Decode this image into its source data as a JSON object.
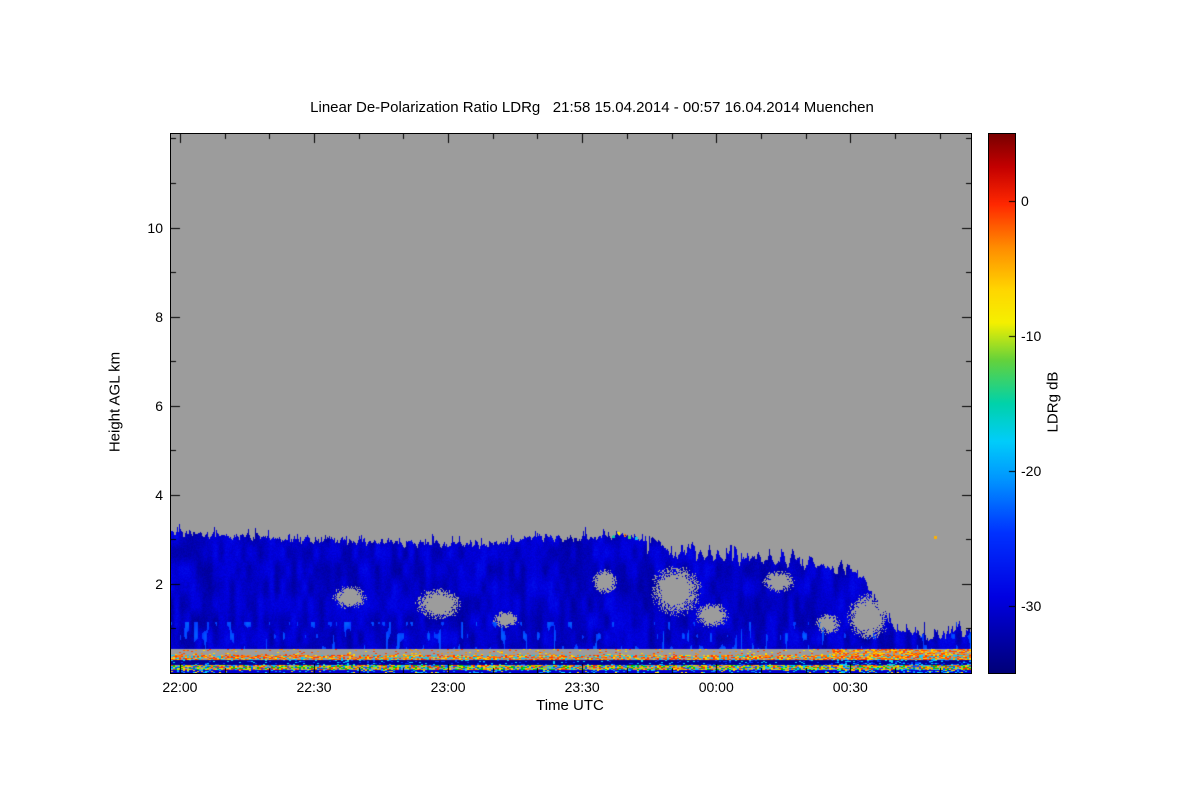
{
  "chart_data": {
    "type": "heatmap",
    "title": "Linear De-Polarization Ratio LDRg   21:58 15.04.2014 - 00:57 16.04.2014 Muenchen",
    "instrument_quantity": "Linear De-Polarization Ratio LDRg",
    "time_start": "21:58 15.04.2014",
    "time_end": "00:57 16.04.2014",
    "station": "Muenchen",
    "xlabel": "Time UTC",
    "ylabel": "Height AGL km",
    "x_range_minutes": [
      0,
      179
    ],
    "x_ticks": [
      {
        "t": 2,
        "label": "22:00"
      },
      {
        "t": 32,
        "label": "22:30"
      },
      {
        "t": 62,
        "label": "23:00"
      },
      {
        "t": 92,
        "label": "23:30"
      },
      {
        "t": 122,
        "label": "00:00"
      },
      {
        "t": 152,
        "label": "00:30"
      }
    ],
    "x_minor_tick_minutes": 10,
    "y_range_km": [
      0,
      12.1
    ],
    "y_ticks": [
      {
        "h": 2,
        "label": "2"
      },
      {
        "h": 4,
        "label": "4"
      },
      {
        "h": 6,
        "label": "6"
      },
      {
        "h": 8,
        "label": "8"
      },
      {
        "h": 10,
        "label": "10"
      }
    ],
    "y_minor_tick_km": 1,
    "nodata_color": "#9c9c9c",
    "colorbar": {
      "label": "LDRg dB",
      "range_db": [
        -35,
        5
      ],
      "ticks": [
        {
          "v": 0,
          "label": "0"
        },
        {
          "v": -10,
          "label": "-10"
        },
        {
          "v": -20,
          "label": "-20"
        },
        {
          "v": -30,
          "label": "-30"
        }
      ],
      "stops": [
        [
          0.0,
          "#7a0000"
        ],
        [
          0.06,
          "#c30000"
        ],
        [
          0.13,
          "#ff2800"
        ],
        [
          0.21,
          "#ff8c00"
        ],
        [
          0.29,
          "#ffd700"
        ],
        [
          0.35,
          "#f5f000"
        ],
        [
          0.42,
          "#64d23c"
        ],
        [
          0.5,
          "#00d2aa"
        ],
        [
          0.57,
          "#00cdfa"
        ],
        [
          0.64,
          "#0096ff"
        ],
        [
          0.74,
          "#0032ff"
        ],
        [
          0.86,
          "#0000e1"
        ],
        [
          1.0,
          "#000078"
        ]
      ]
    },
    "cloud": {
      "description": "Low liquid cloud layer with LDRg near -31 dB (blue) from ~0.55 km up to ~3 km; top slowly lowers, layer breaks up and descends to ~0.9 km after 00:30; gray = no data",
      "typical_ldr_db": -31,
      "base_km": 0.55,
      "top_profile": [
        [
          0,
          3.15
        ],
        [
          5,
          3.13
        ],
        [
          10,
          3.1
        ],
        [
          15,
          3.07
        ],
        [
          20,
          3.04
        ],
        [
          25,
          3.02
        ],
        [
          30,
          3.0
        ],
        [
          35,
          2.98
        ],
        [
          40,
          2.97
        ],
        [
          45,
          2.95
        ],
        [
          50,
          2.94
        ],
        [
          55,
          2.93
        ],
        [
          60,
          2.92
        ],
        [
          65,
          2.9
        ],
        [
          70,
          2.92
        ],
        [
          75,
          2.97
        ],
        [
          80,
          3.02
        ],
        [
          85,
          3.06
        ],
        [
          88,
          3.03
        ],
        [
          92,
          3.05
        ],
        [
          96,
          3.08
        ],
        [
          100,
          3.12
        ],
        [
          103,
          3.08
        ],
        [
          106,
          2.98
        ],
        [
          110,
          2.8
        ],
        [
          114,
          2.72
        ],
        [
          118,
          2.7
        ],
        [
          122,
          2.76
        ],
        [
          126,
          2.66
        ],
        [
          130,
          2.6
        ],
        [
          134,
          2.62
        ],
        [
          138,
          2.54
        ],
        [
          142,
          2.5
        ],
        [
          146,
          2.45
        ],
        [
          150,
          2.4
        ],
        [
          153,
          2.3
        ],
        [
          156,
          1.9
        ],
        [
          159,
          1.4
        ],
        [
          162,
          1.05
        ],
        [
          166,
          0.92
        ],
        [
          170,
          0.85
        ],
        [
          174,
          0.9
        ],
        [
          179,
          0.95
        ]
      ],
      "holes": [
        {
          "t": 40,
          "h": 1.7,
          "rt": 4.0,
          "rh": 0.28
        },
        {
          "t": 60,
          "h": 1.55,
          "rt": 5.5,
          "rh": 0.38
        },
        {
          "t": 75,
          "h": 1.2,
          "rt": 3.0,
          "rh": 0.2
        },
        {
          "t": 97,
          "h": 2.05,
          "rt": 3.0,
          "rh": 0.3
        },
        {
          "t": 113,
          "h": 1.85,
          "rt": 6.0,
          "rh": 0.6
        },
        {
          "t": 121,
          "h": 1.3,
          "rt": 4.0,
          "rh": 0.3
        },
        {
          "t": 136,
          "h": 2.05,
          "rt": 4.0,
          "rh": 0.25
        },
        {
          "t": 147,
          "h": 1.1,
          "rt": 3.0,
          "rh": 0.25
        },
        {
          "t": 156,
          "h": 1.25,
          "rt": 5.0,
          "rh": 0.55
        }
      ],
      "top_specks": [
        {
          "t": 99,
          "h": 3.08,
          "db": -15
        },
        {
          "t": 100,
          "h": 3.14,
          "db": -8
        },
        {
          "t": 101.5,
          "h": 3.1,
          "db": -3
        },
        {
          "t": 102.5,
          "h": 3.05,
          "db": -13
        },
        {
          "t": 104,
          "h": 3.02,
          "db": -18
        },
        {
          "t": 171,
          "h": 3.05,
          "db": -5
        }
      ]
    },
    "surface_bands": [
      {
        "name": "gray-band",
        "h0": 0.41,
        "h1": 0.55,
        "base": "#9c9c9c",
        "palette": [
          "#ff8c00",
          "#ffd700",
          "#ff4600"
        ],
        "p": 0.1,
        "p_after": 0.62,
        "t_after": 148
      },
      {
        "name": "warm-speckle-band",
        "h0": 0.3,
        "h1": 0.41,
        "base": "#9c9c9c",
        "palette": [
          "#ff8c00",
          "#ff6400",
          "#ffd700",
          "#ff3200",
          "#00cdfa"
        ],
        "p": 0.72,
        "p_after": 0.85,
        "t_after": 148
      },
      {
        "name": "navy-band",
        "h0": 0.19,
        "h1": 0.3,
        "base": "#000096",
        "palette": [
          "#0032ff",
          "#00cdfa"
        ],
        "p": 0.12,
        "p_after": 0.3,
        "t_after": 148
      },
      {
        "name": "rainbow-speckle-band",
        "h0": 0.08,
        "h1": 0.19,
        "base": "#9c9c9c",
        "palette": [
          "#00c800",
          "#ffd700",
          "#ff8c00",
          "#ff3200",
          "#00cdfa",
          "#0050ff",
          "#b4f000"
        ],
        "p": 0.85,
        "p_after": 0.9,
        "t_after": 148
      },
      {
        "name": "bottom-blue-band",
        "h0": 0.0,
        "h1": 0.08,
        "base": "#0000d2",
        "palette": [
          "#0096ff",
          "#00cdfa",
          "#ffd700"
        ],
        "p": 0.18,
        "p_after": 0.3,
        "t_after": 148
      }
    ]
  }
}
